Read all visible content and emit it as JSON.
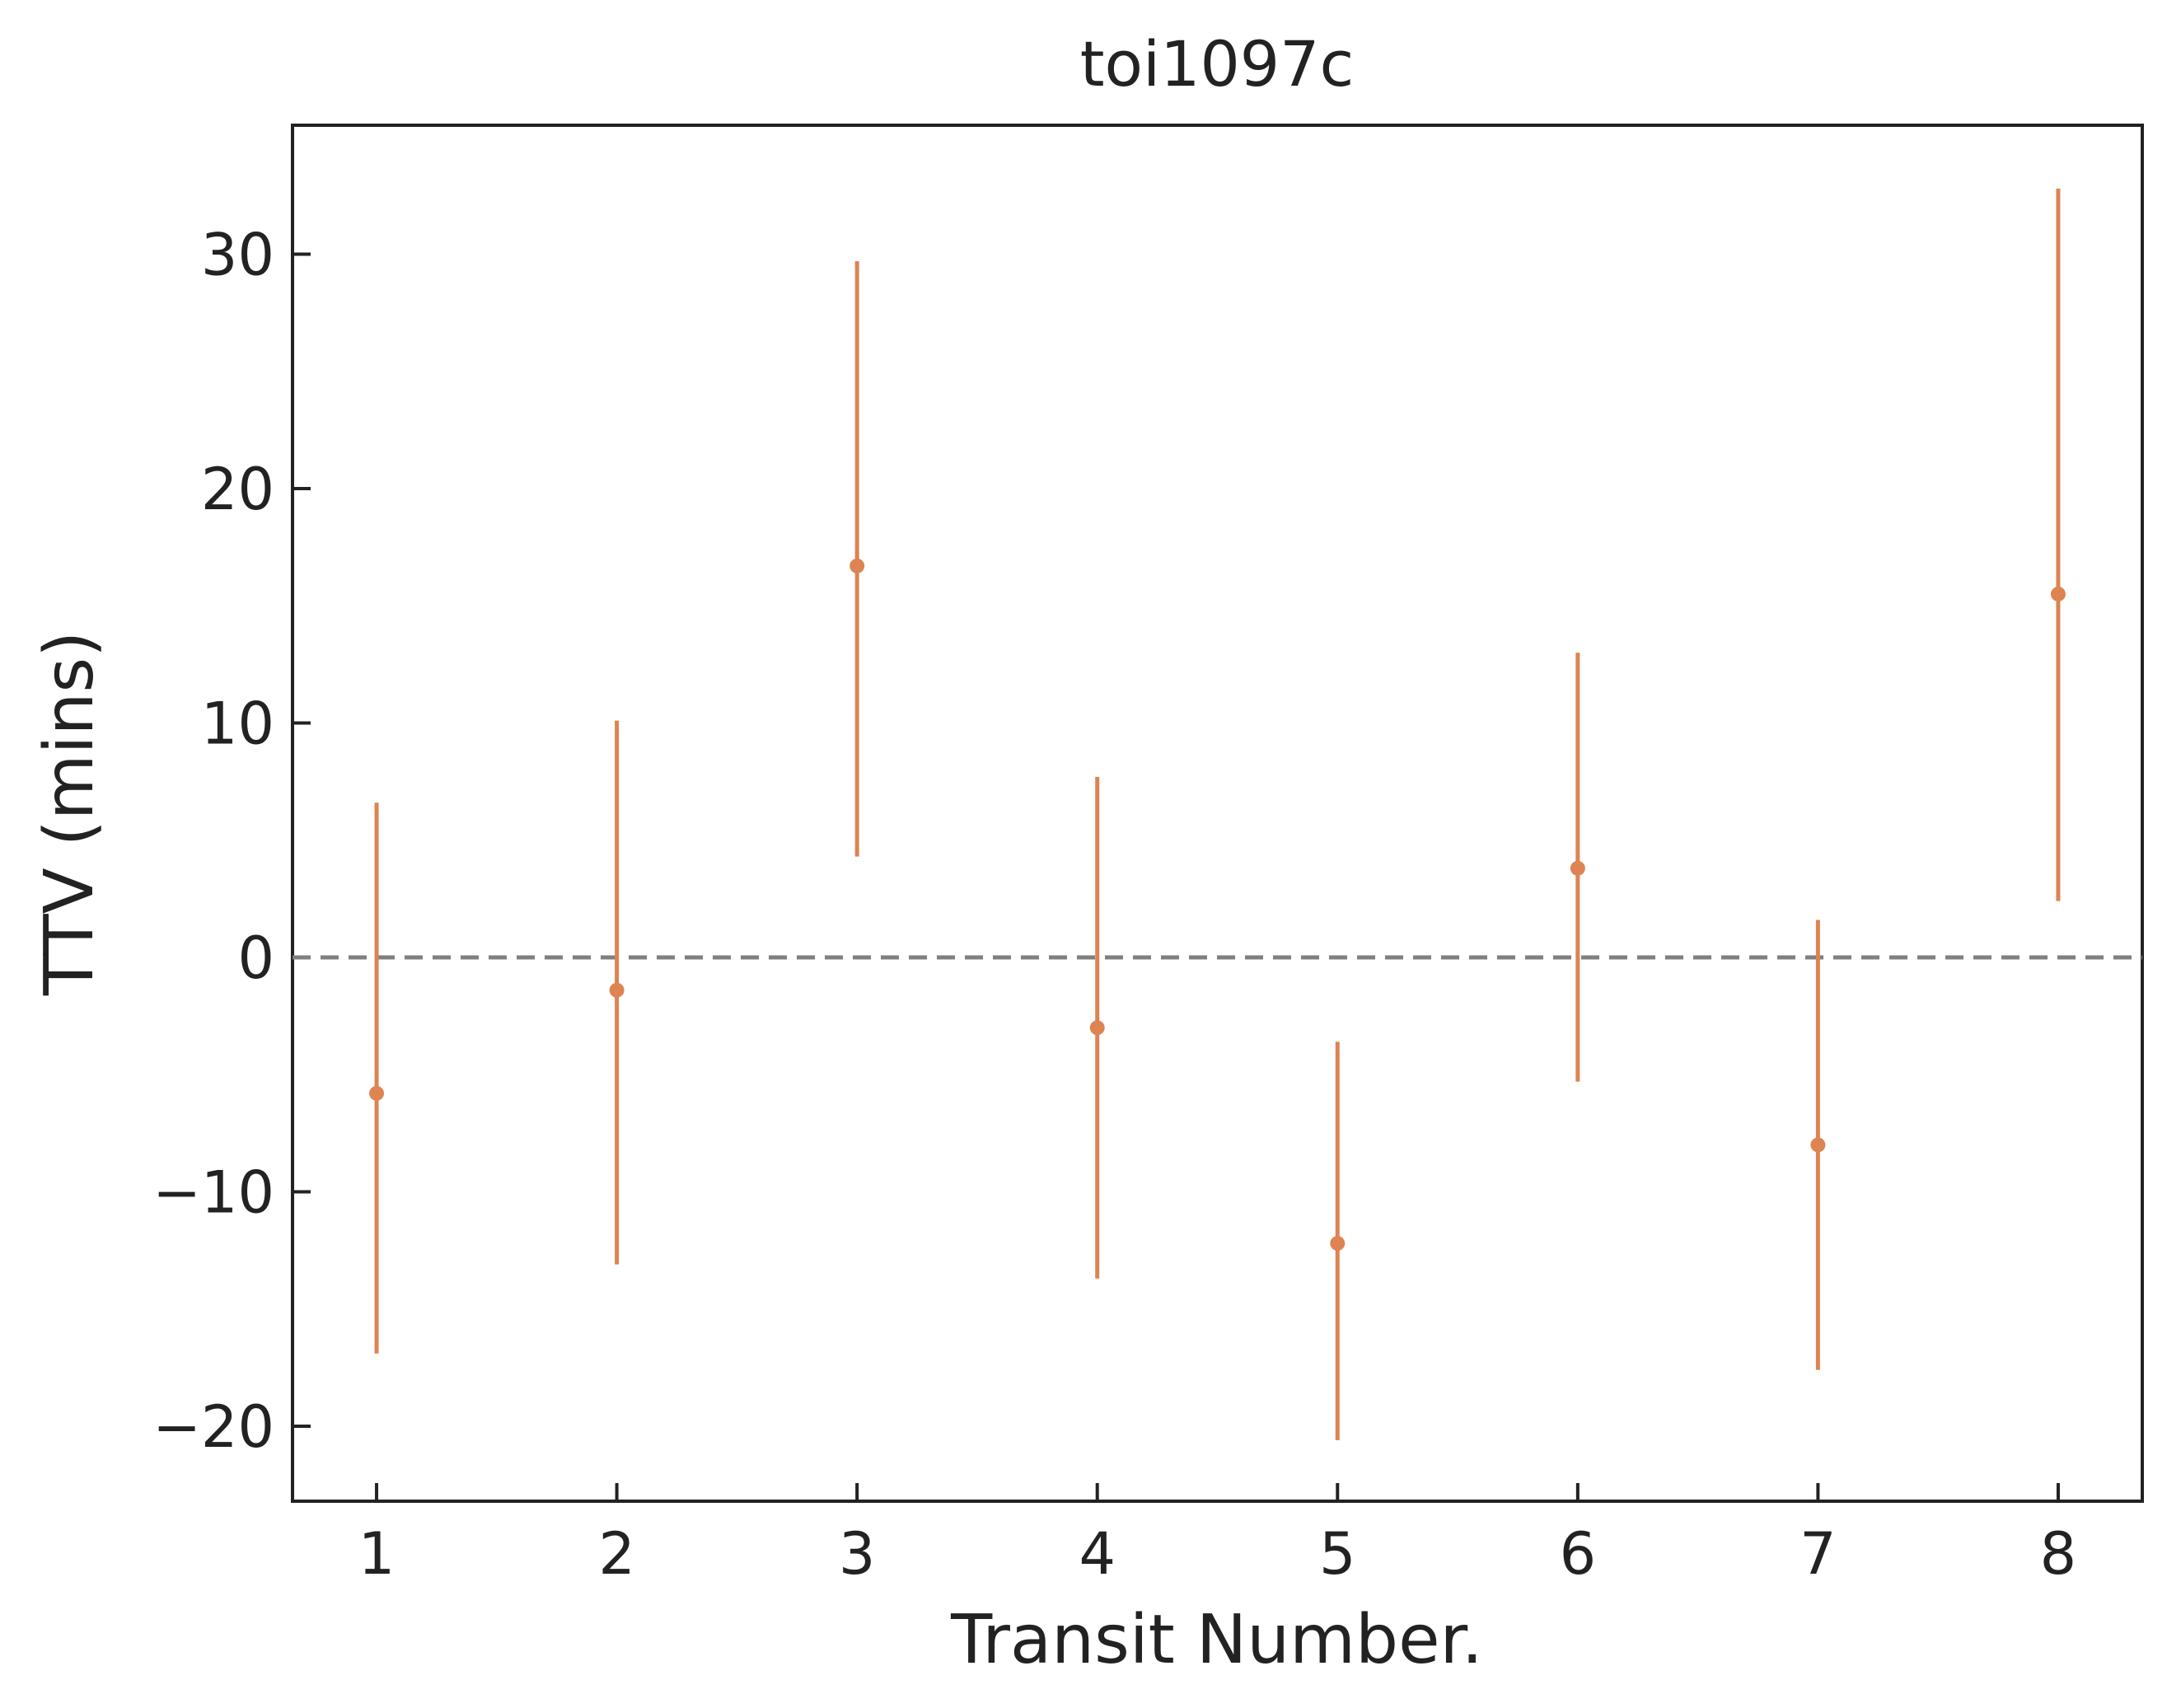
{
  "chart_data": {
    "type": "scatter",
    "title": "toi1097c",
    "xlabel": "Transit Number.",
    "ylabel": "TTV (mins)",
    "xlim": [
      0.65,
      8.35
    ],
    "ylim": [
      -23.2,
      35.5
    ],
    "x_ticks": [
      1,
      2,
      3,
      4,
      5,
      6,
      7,
      8
    ],
    "x_tick_labels": [
      "1",
      "2",
      "3",
      "4",
      "5",
      "6",
      "7",
      "8"
    ],
    "y_ticks": [
      -20,
      -10,
      0,
      10,
      20,
      30
    ],
    "y_tick_labels": [
      "−20",
      "−10",
      "0",
      "10",
      "20",
      "30"
    ],
    "grid": false,
    "reference_line": {
      "y": 0,
      "style": "dashed",
      "color": "#808080"
    },
    "series": [
      {
        "color": "#DD8452",
        "points": [
          {
            "x": 1,
            "y": -5.8,
            "err_low": 11.1,
            "err_high": 12.4
          },
          {
            "x": 2,
            "y": -1.4,
            "err_low": 11.7,
            "err_high": 11.5
          },
          {
            "x": 3,
            "y": 16.7,
            "err_low": 12.4,
            "err_high": 13.0
          },
          {
            "x": 4,
            "y": -3.0,
            "err_low": 10.7,
            "err_high": 10.7
          },
          {
            "x": 5,
            "y": -12.2,
            "err_low": 8.4,
            "err_high": 8.6
          },
          {
            "x": 6,
            "y": 3.8,
            "err_low": 9.1,
            "err_high": 9.2
          },
          {
            "x": 7,
            "y": -8.0,
            "err_low": 9.6,
            "err_high": 9.6
          },
          {
            "x": 8,
            "y": 15.5,
            "err_low": 13.1,
            "err_high": 17.3
          }
        ]
      }
    ]
  }
}
